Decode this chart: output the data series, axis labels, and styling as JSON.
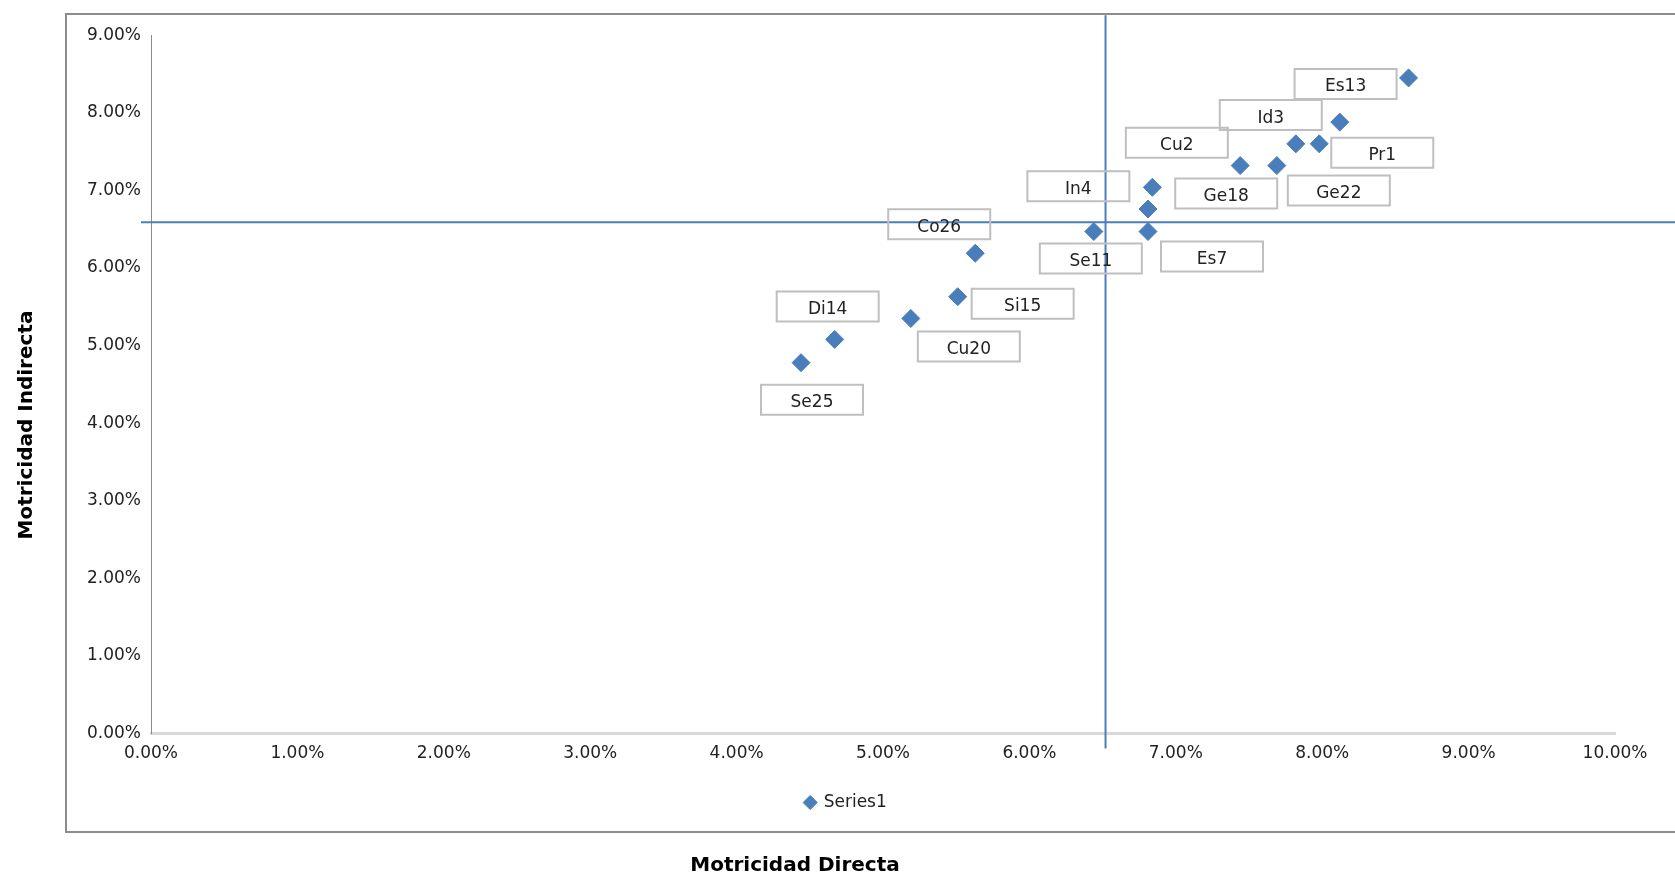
{
  "chart_data": {
    "type": "scatter",
    "xlabel": "Motricidad Directa",
    "ylabel": "Motricidad Indirecta",
    "x": [
      8.59,
      8.12,
      7.82,
      7.98,
      7.44,
      7.69,
      6.84,
      6.81,
      6.44,
      6.81,
      5.63,
      5.51,
      5.19,
      4.67,
      4.44
    ],
    "series": [
      {
        "name": "Series1",
        "color": "#4a7ebb",
        "values": [
          8.45,
          7.88,
          7.6,
          7.6,
          7.32,
          7.32,
          7.04,
          6.76,
          6.47,
          6.47,
          6.19,
          5.63,
          5.35,
          5.08,
          4.78
        ]
      }
    ],
    "xlim": [
      0,
      10
    ],
    "ylim": [
      0,
      9
    ],
    "xticks": [
      {
        "value": 0,
        "label": "0.00%"
      },
      {
        "value": 1,
        "label": "1.00%"
      },
      {
        "value": 2,
        "label": "2.00%"
      },
      {
        "value": 3,
        "label": "3.00%"
      },
      {
        "value": 4,
        "label": "4.00%"
      },
      {
        "value": 5,
        "label": "5.00%"
      },
      {
        "value": 6,
        "label": "6.00%"
      },
      {
        "value": 7,
        "label": "7.00%"
      },
      {
        "value": 8,
        "label": "8.00%"
      },
      {
        "value": 9,
        "label": "9.00%"
      },
      {
        "value": 10,
        "label": "10.00%"
      }
    ],
    "yticks": [
      {
        "value": 0,
        "label": "0.00%"
      },
      {
        "value": 1,
        "label": "1.00%"
      },
      {
        "value": 2,
        "label": "2.00%"
      },
      {
        "value": 3,
        "label": "3.00%"
      },
      {
        "value": 4,
        "label": "4.00%"
      },
      {
        "value": 5,
        "label": "5.00%"
      },
      {
        "value": 6,
        "label": "6.00%"
      },
      {
        "value": 7,
        "label": "7.00%"
      },
      {
        "value": 8,
        "label": "8.00%"
      },
      {
        "value": 9,
        "label": "9.00%"
      }
    ],
    "ref_lines": [
      {
        "axis": "x",
        "value": 6.52,
        "color": "#4a7ebb"
      },
      {
        "axis": "y",
        "value": 6.59,
        "color": "#4a7ebb"
      }
    ],
    "annotations": [
      "Es13",
      "Id3",
      "Cu2",
      "Pr1",
      "Ge18",
      "Ge22",
      "In4",
      "Se11",
      "Es7",
      "Co26",
      "Si15",
      "Cu20",
      "Di14",
      "Se25"
    ],
    "grid": false,
    "legend": "bottom",
    "marker": "diamond"
  }
}
